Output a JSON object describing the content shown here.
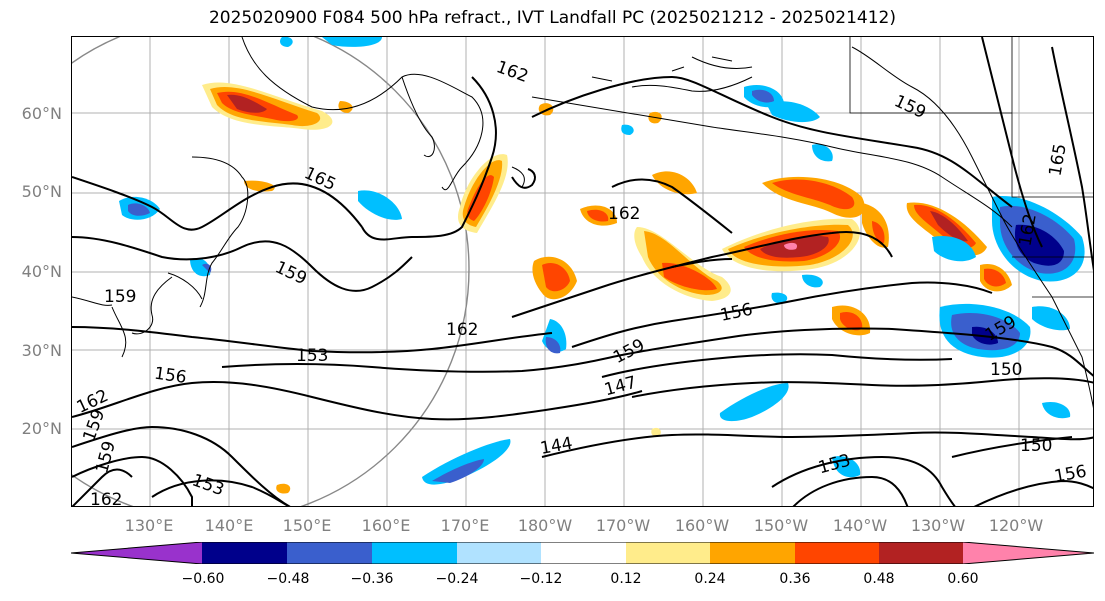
{
  "title": "2025020900 F084 500 hPa refract., IVT Landfall PC (2025021212 - 2025021412)",
  "lat_labels": [
    "60°N",
    "50°N",
    "40°N",
    "30°N",
    "20°N"
  ],
  "lon_labels": [
    "130°E",
    "140°E",
    "150°E",
    "160°E",
    "170°E",
    "180°W",
    "170°W",
    "160°W",
    "150°W",
    "140°W",
    "130°W",
    "120°W"
  ],
  "colorbar": {
    "ticks": [
      "−0.60",
      "−0.48",
      "−0.36",
      "−0.24",
      "−0.12",
      "0.12",
      "0.24",
      "0.36",
      "0.48",
      "0.60"
    ],
    "colors": [
      "#9932cc",
      "#00008b",
      "#3a5fcd",
      "#00bfff",
      "#b0e2ff",
      "#ffffff",
      "#ffec8b",
      "#ffa500",
      "#ff4500",
      "#b22222",
      "#ff82ab"
    ]
  },
  "contour_labels": [
    "162",
    "159",
    "165",
    "162",
    "165",
    "162",
    "159",
    "162",
    "159",
    "159",
    "153",
    "156",
    "162",
    "159",
    "156",
    "159",
    "147",
    "150",
    "144",
    "150",
    "153",
    "153",
    "156",
    "162",
    "159"
  ]
}
